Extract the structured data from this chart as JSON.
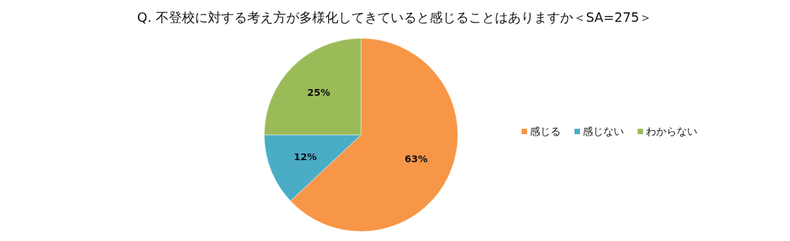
{
  "chart_data": {
    "type": "pie",
    "title": "Q. 不登校に対する考え方が多様化してきていると感じることはありますか＜SA=275＞",
    "categories": [
      "感じる",
      "感じない",
      "わからない"
    ],
    "values": [
      63,
      12,
      25
    ],
    "colors": [
      "#f79646",
      "#4bacc6",
      "#9bbb59"
    ],
    "value_labels": [
      "63%",
      "12%",
      "25%"
    ],
    "legend": "right"
  }
}
